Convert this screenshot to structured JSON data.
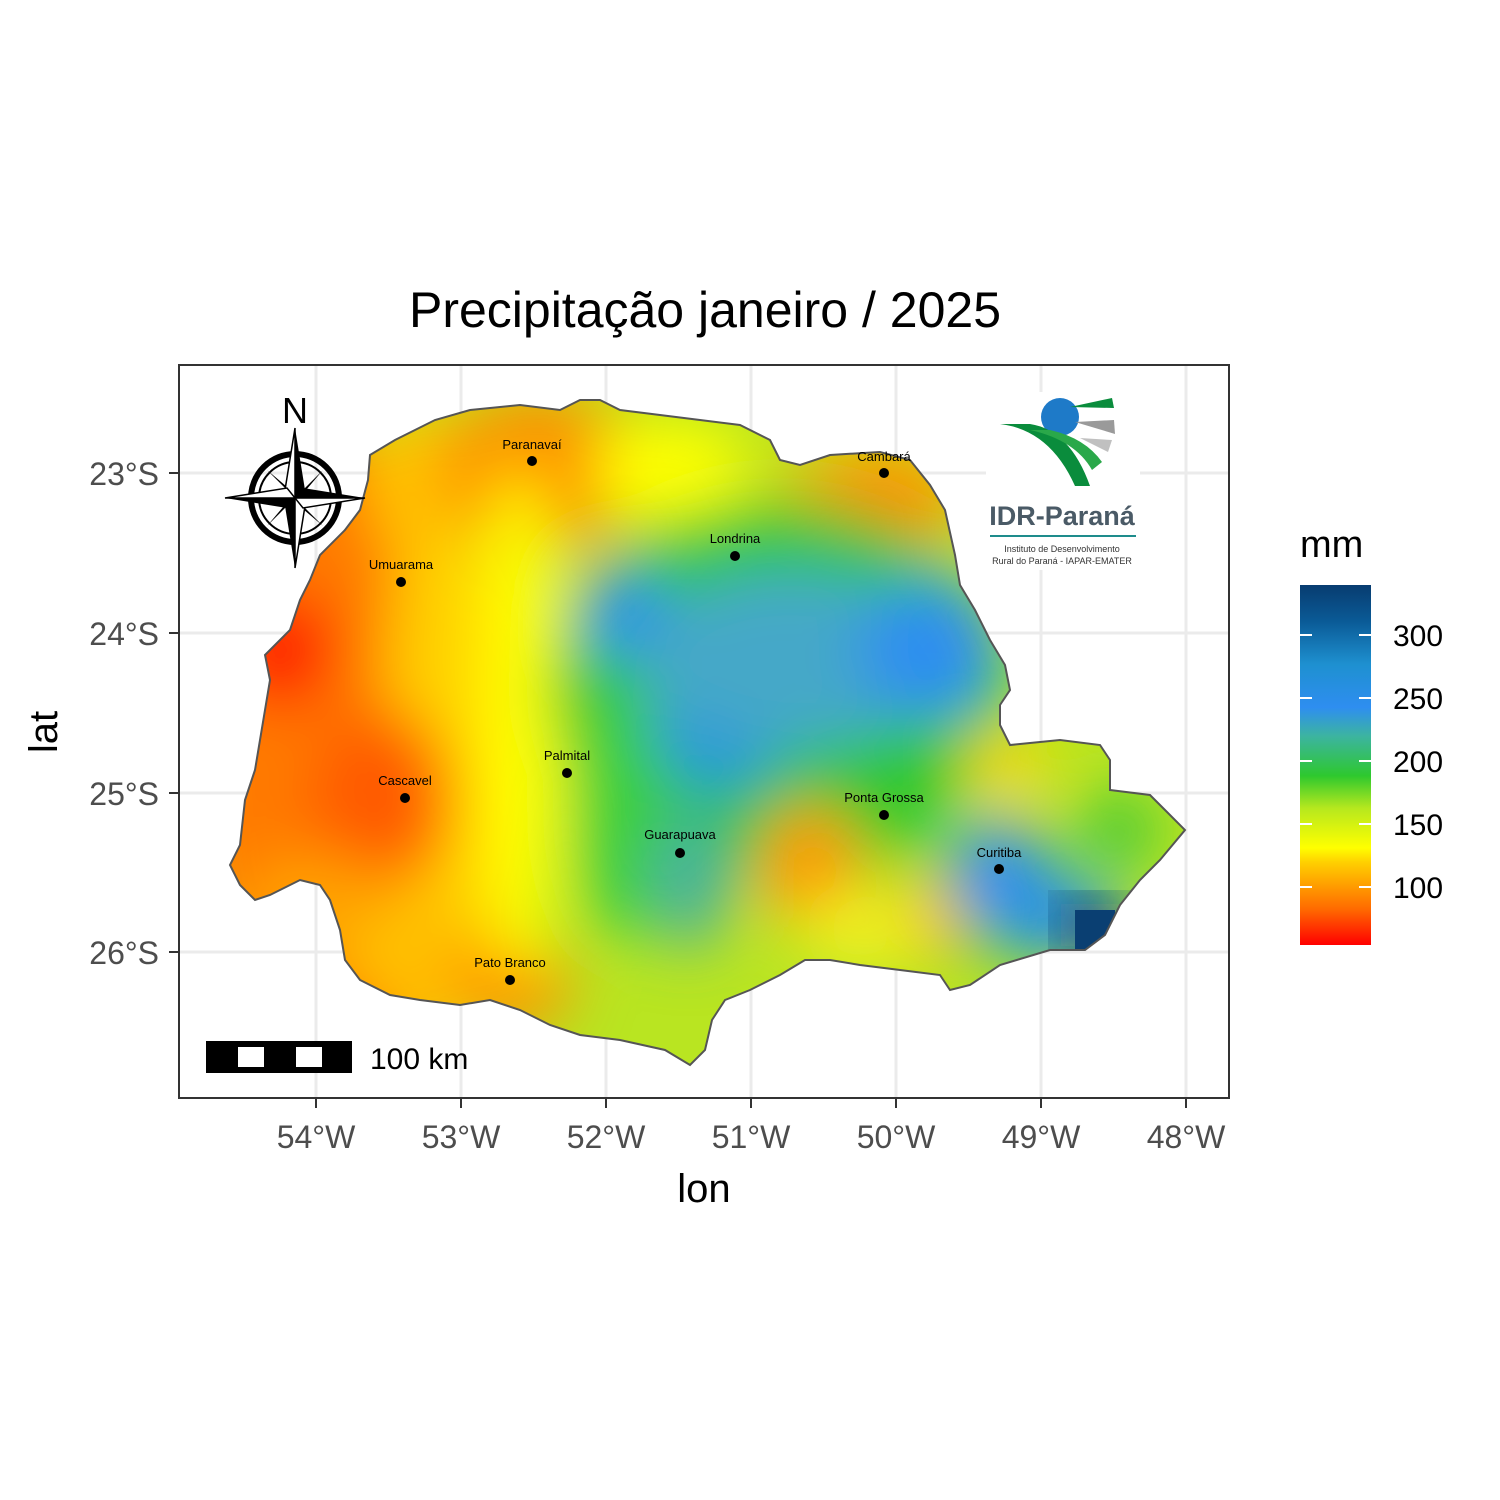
{
  "map": {
    "title": "Precipitação janeiro / 2025",
    "xlabel": "lon",
    "ylabel": "lat",
    "x_ticks": [
      "54°W",
      "53°W",
      "52°W",
      "51°W",
      "50°W",
      "49°W",
      "48°W"
    ],
    "y_ticks": [
      "23°S",
      "24°S",
      "25°S",
      "26°S"
    ],
    "cities": [
      {
        "name": "Paranavaí"
      },
      {
        "name": "Cambará"
      },
      {
        "name": "Londrina"
      },
      {
        "name": "Umuarama"
      },
      {
        "name": "Palmital"
      },
      {
        "name": "Cascavel"
      },
      {
        "name": "Ponta Grossa"
      },
      {
        "name": "Guarapuava"
      },
      {
        "name": "Curitiba"
      },
      {
        "name": "Pato Branco"
      }
    ],
    "legend": {
      "title": "mm",
      "labels": [
        "300",
        "250",
        "200",
        "150",
        "100"
      ],
      "colors": [
        "#ff0000",
        "#ff6a00",
        "#ffd000",
        "#ffff00",
        "#b6e81e",
        "#2ec82e",
        "#3cb4a0",
        "#2e8ef0",
        "#1e78c8",
        "#0a5a96",
        "#083c70"
      ]
    },
    "compass": {
      "north_label": "N"
    },
    "scale_bar": {
      "label": "100 km"
    },
    "logo": {
      "name": "IDR-Paraná",
      "subtitle_line1": "Instituto de Desenvolvimento",
      "subtitle_line2": "Rural do Paraná - IAPAR-EMATER"
    }
  }
}
